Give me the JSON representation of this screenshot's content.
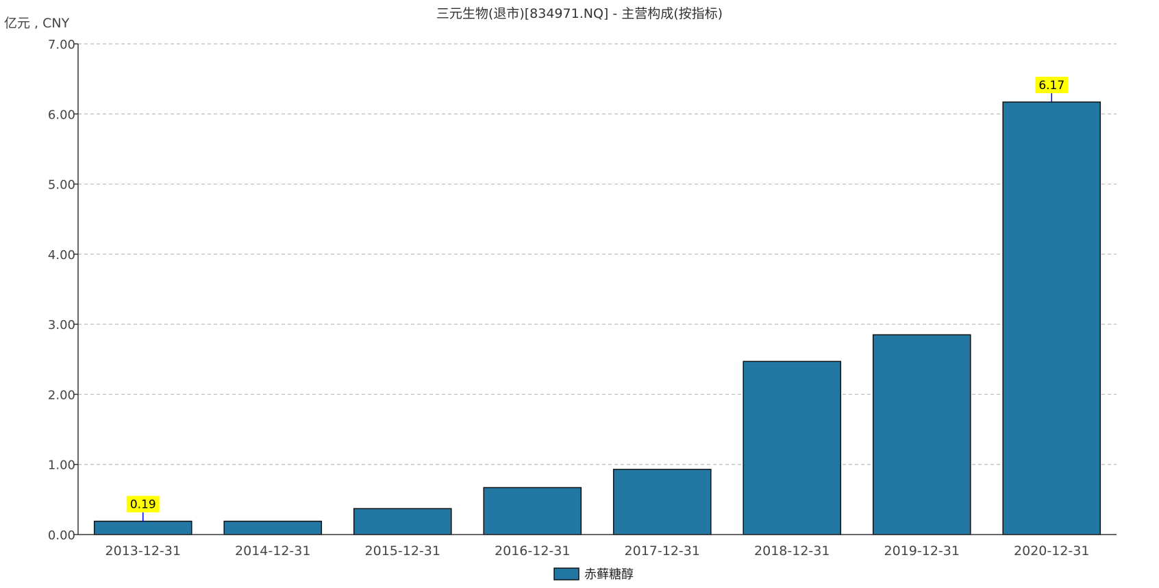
{
  "chart_data": {
    "type": "bar",
    "title": "三元生物(退市)[834971.NQ] - 主营构成(按指标)",
    "unit_label": "亿元 , CNY",
    "xlabel": "",
    "ylabel": "亿元 , CNY",
    "ylim": [
      0,
      7
    ],
    "yticks": [
      "0.00",
      "1.00",
      "2.00",
      "3.00",
      "4.00",
      "5.00",
      "6.00",
      "7.00"
    ],
    "grid": true,
    "legend_position": "bottom-center",
    "categories": [
      "2013-12-31",
      "2014-12-31",
      "2015-12-31",
      "2016-12-31",
      "2017-12-31",
      "2018-12-31",
      "2019-12-31",
      "2020-12-31"
    ],
    "series": [
      {
        "name": "赤藓糖醇",
        "color": "#2277a3",
        "values": [
          0.19,
          0.19,
          0.37,
          0.67,
          0.93,
          2.47,
          2.85,
          6.17
        ]
      }
    ],
    "annotations": [
      {
        "category": "2013-12-31",
        "text": "0.19"
      },
      {
        "category": "2020-12-31",
        "text": "6.17"
      }
    ],
    "colors": {
      "bar_fill": "#2277a3",
      "bar_stroke": "#111111",
      "annotation_bg": "#ffff00",
      "annotation_line": "#0000ff",
      "grid": "#bbbbbb",
      "axis": "#333333"
    }
  }
}
